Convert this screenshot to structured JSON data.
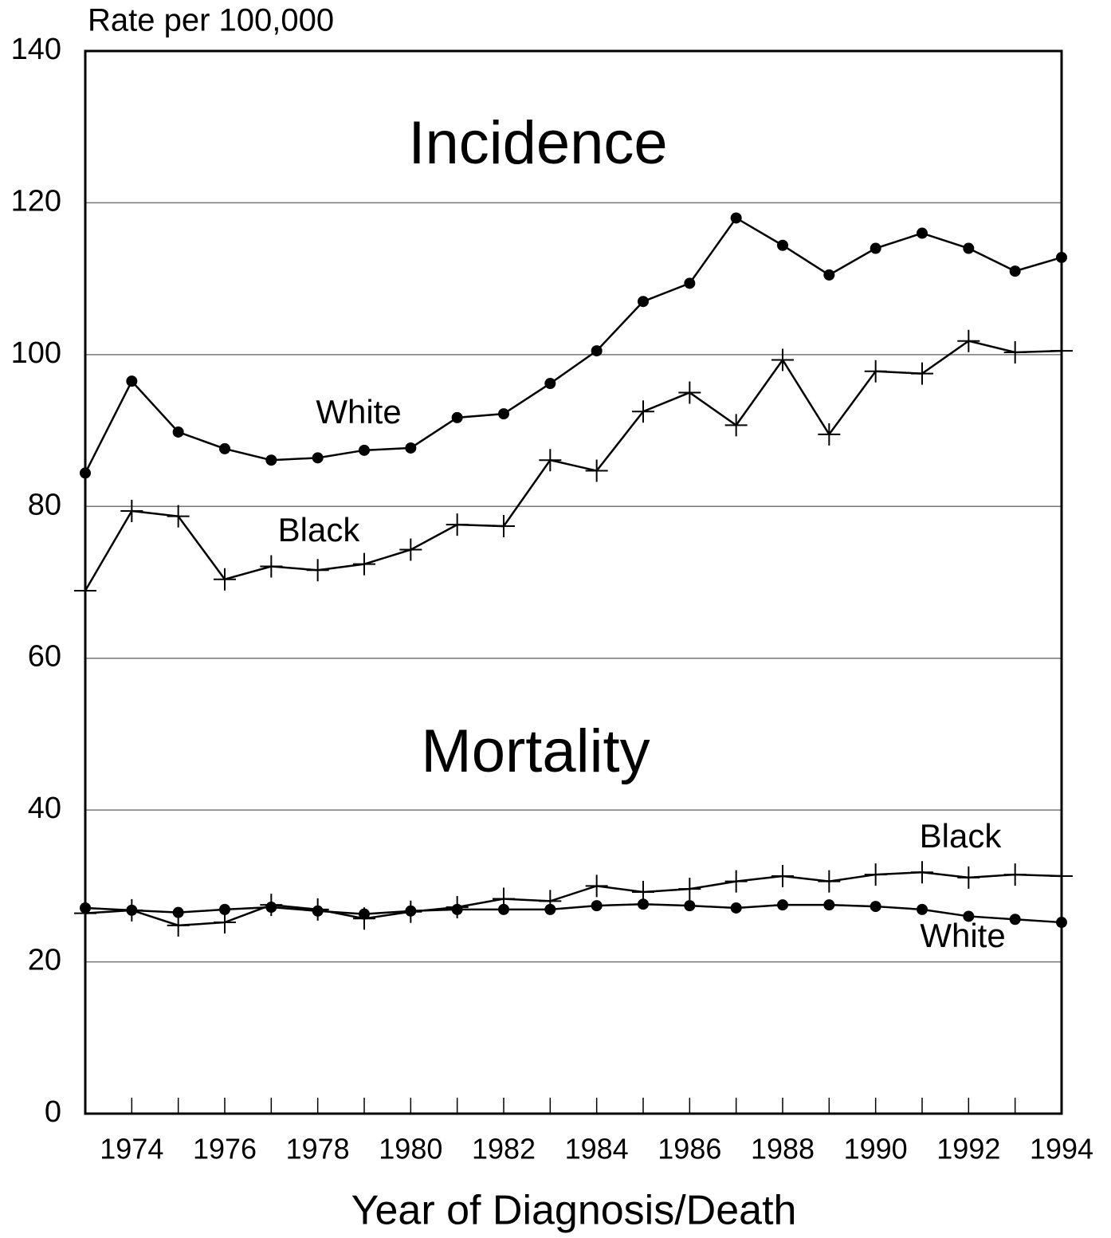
{
  "chart_data": {
    "type": "line",
    "y_label": "Rate per 100,000",
    "x_label": "Year of Diagnosis/Death",
    "annotations": [
      "Incidence",
      "Mortality",
      "White",
      "Black",
      "Black",
      "White"
    ],
    "x": [
      1973,
      1974,
      1975,
      1976,
      1977,
      1978,
      1979,
      1980,
      1981,
      1982,
      1983,
      1984,
      1985,
      1986,
      1987,
      1988,
      1989,
      1990,
      1991,
      1992,
      1993,
      1994
    ],
    "series": [
      {
        "name": "White incidence",
        "color": "#000000",
        "marker": "circle",
        "values": [
          84.4,
          96.5,
          89.8,
          87.6,
          86.1,
          86.4,
          87.4,
          87.7,
          91.7,
          92.2,
          96.2,
          100.5,
          107.0,
          109.4,
          118.0,
          114.4,
          110.5,
          114.0,
          116.0,
          114.0,
          111.0,
          112.8
        ]
      },
      {
        "name": "Black incidence",
        "color": "#000000",
        "marker": "plus",
        "values": [
          68.9,
          79.4,
          78.7,
          70.4,
          72.1,
          71.6,
          72.4,
          74.3,
          77.6,
          77.4,
          86.1,
          84.7,
          92.5,
          95.0,
          90.7,
          99.3,
          89.5,
          97.8,
          97.5,
          101.8,
          100.3,
          100.5
        ]
      },
      {
        "name": "White mortality",
        "color": "#000000",
        "marker": "circle",
        "values": [
          27.1,
          26.8,
          26.5,
          26.9,
          27.2,
          26.7,
          26.3,
          26.7,
          26.9,
          26.9,
          26.9,
          27.4,
          27.6,
          27.4,
          27.1,
          27.5,
          27.5,
          27.3,
          26.9,
          26.0,
          25.6,
          25.2
        ]
      },
      {
        "name": "Black mortality",
        "color": "#000000",
        "marker": "plus",
        "values": [
          26.4,
          26.8,
          24.8,
          25.2,
          27.5,
          26.9,
          25.7,
          26.6,
          27.2,
          28.3,
          28.0,
          30.0,
          29.2,
          29.6,
          30.6,
          31.3,
          30.6,
          31.5,
          31.8,
          31.1,
          31.5,
          31.3
        ]
      }
    ],
    "xlim": [
      1973,
      1994
    ],
    "xticks": [
      1974,
      1976,
      1978,
      1980,
      1982,
      1984,
      1986,
      1988,
      1990,
      1992,
      1994
    ],
    "ylim": [
      0,
      140
    ],
    "yticks": [
      0,
      20,
      40,
      60,
      80,
      100,
      120,
      140
    ],
    "grid": true,
    "legend": false
  }
}
